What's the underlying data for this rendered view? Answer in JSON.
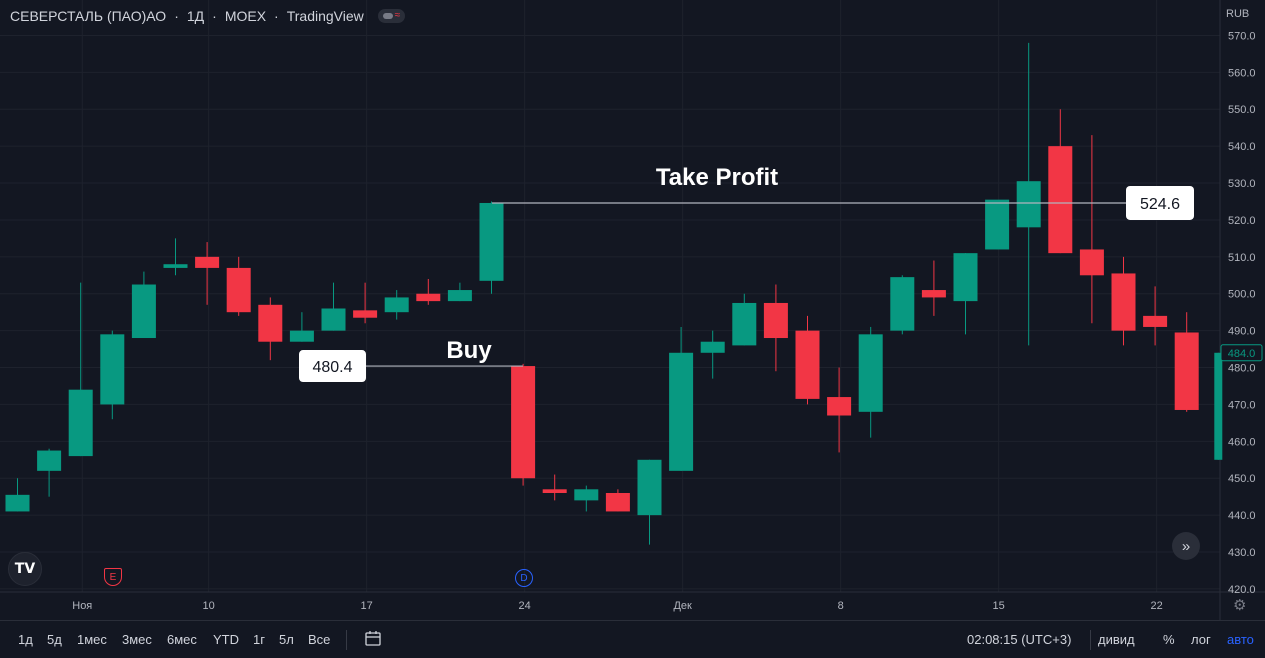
{
  "header": {
    "symbol": "СЕВЕРСТАЛЬ (ПАО)АО",
    "interval": "1Д",
    "exchange": "MOEX",
    "source": "TradingView",
    "separator": "·"
  },
  "chart_data": {
    "type": "candlestick",
    "currency": "RUB",
    "ylim": [
      417,
      575
    ],
    "y_ticks": [
      420,
      430,
      440,
      450,
      460,
      470,
      480,
      490,
      500,
      510,
      520,
      530,
      540,
      550,
      560,
      570
    ],
    "x_tick_labels": [
      "Ноя",
      "10",
      "17",
      "24",
      "Дек",
      "8",
      "15",
      "22"
    ],
    "candles": [
      {
        "o": 441,
        "h": 450,
        "l": 441,
        "c": 445.5
      },
      {
        "o": 452,
        "h": 458,
        "l": 445,
        "c": 457.5
      },
      {
        "o": 456,
        "h": 503,
        "l": 456,
        "c": 474
      },
      {
        "o": 470,
        "h": 490,
        "l": 466,
        "c": 489
      },
      {
        "o": 488,
        "h": 506,
        "l": 488,
        "c": 502.5
      },
      {
        "o": 507,
        "h": 515,
        "l": 505,
        "c": 508
      },
      {
        "o": 510,
        "h": 514,
        "l": 497,
        "c": 507
      },
      {
        "o": 507,
        "h": 510,
        "l": 494,
        "c": 495
      },
      {
        "o": 497,
        "h": 499,
        "l": 482,
        "c": 487
      },
      {
        "o": 487,
        "h": 495,
        "l": 487,
        "c": 490
      },
      {
        "o": 490,
        "h": 503,
        "l": 490,
        "c": 496
      },
      {
        "o": 495.5,
        "h": 503,
        "l": 492,
        "c": 493.5
      },
      {
        "o": 495,
        "h": 501,
        "l": 493,
        "c": 499
      },
      {
        "o": 500,
        "h": 504,
        "l": 497,
        "c": 498
      },
      {
        "o": 498,
        "h": 503,
        "l": 498,
        "c": 501
      },
      {
        "o": 503.5,
        "h": 525,
        "l": 500,
        "c": 524.6
      },
      {
        "o": 480.4,
        "h": 481,
        "l": 448,
        "c": 450
      },
      {
        "o": 447,
        "h": 451,
        "l": 444,
        "c": 446
      },
      {
        "o": 444,
        "h": 448,
        "l": 441,
        "c": 447
      },
      {
        "o": 446,
        "h": 447,
        "l": 441,
        "c": 441
      },
      {
        "o": 440,
        "h": 455,
        "l": 432,
        "c": 455
      },
      {
        "o": 452,
        "h": 491,
        "l": 452,
        "c": 484
      },
      {
        "o": 484,
        "h": 490,
        "l": 477,
        "c": 487
      },
      {
        "o": 486,
        "h": 500,
        "l": 486,
        "c": 497.5
      },
      {
        "o": 497.5,
        "h": 502.5,
        "l": 479,
        "c": 488
      },
      {
        "o": 490,
        "h": 494,
        "l": 470,
        "c": 471.5
      },
      {
        "o": 472,
        "h": 480,
        "l": 457,
        "c": 467
      },
      {
        "o": 468,
        "h": 491,
        "l": 461,
        "c": 489
      },
      {
        "o": 490,
        "h": 505,
        "l": 489,
        "c": 504.5
      },
      {
        "o": 501,
        "h": 509,
        "l": 494,
        "c": 499
      },
      {
        "o": 498,
        "h": 511,
        "l": 489,
        "c": 511
      },
      {
        "o": 512,
        "h": 525,
        "l": 512,
        "c": 525.5
      },
      {
        "o": 518,
        "h": 568,
        "l": 486,
        "c": 530.5
      },
      {
        "o": 540,
        "h": 550,
        "l": 511,
        "c": 511
      },
      {
        "o": 512,
        "h": 543,
        "l": 492,
        "c": 505
      },
      {
        "o": 505.5,
        "h": 510,
        "l": 486,
        "c": 490
      },
      {
        "o": 494,
        "h": 502,
        "l": 486,
        "c": 491
      },
      {
        "o": 489.5,
        "h": 495,
        "l": 468,
        "c": 468.5
      },
      {
        "o": 455,
        "h": 484,
        "l": 455,
        "c": 484
      }
    ],
    "current_price": "484.0",
    "annotations": [
      {
        "label": "Buy",
        "price": 480.4,
        "price_label": "480.4"
      },
      {
        "label": "Take Profit",
        "price": 524.6,
        "price_label": "524.6"
      }
    ],
    "colors": {
      "up": "#089981",
      "down": "#f23645",
      "background": "#131722",
      "grid": "#1e222d",
      "text": "#b2b5be"
    }
  },
  "events": {
    "earnings": "E",
    "dividend": "D"
  },
  "logo": "TV",
  "scroll_icon": "double-chevron-right-icon",
  "settings_icon": "gear-icon",
  "bottom": {
    "ranges": [
      "1д",
      "5д",
      "1мес",
      "3мес",
      "6мес",
      "YTD",
      "1г",
      "5л",
      "Все"
    ],
    "time": "02:08:15 (UTC+3)",
    "options": [
      "дивид",
      "%",
      "лог",
      "авто"
    ]
  }
}
